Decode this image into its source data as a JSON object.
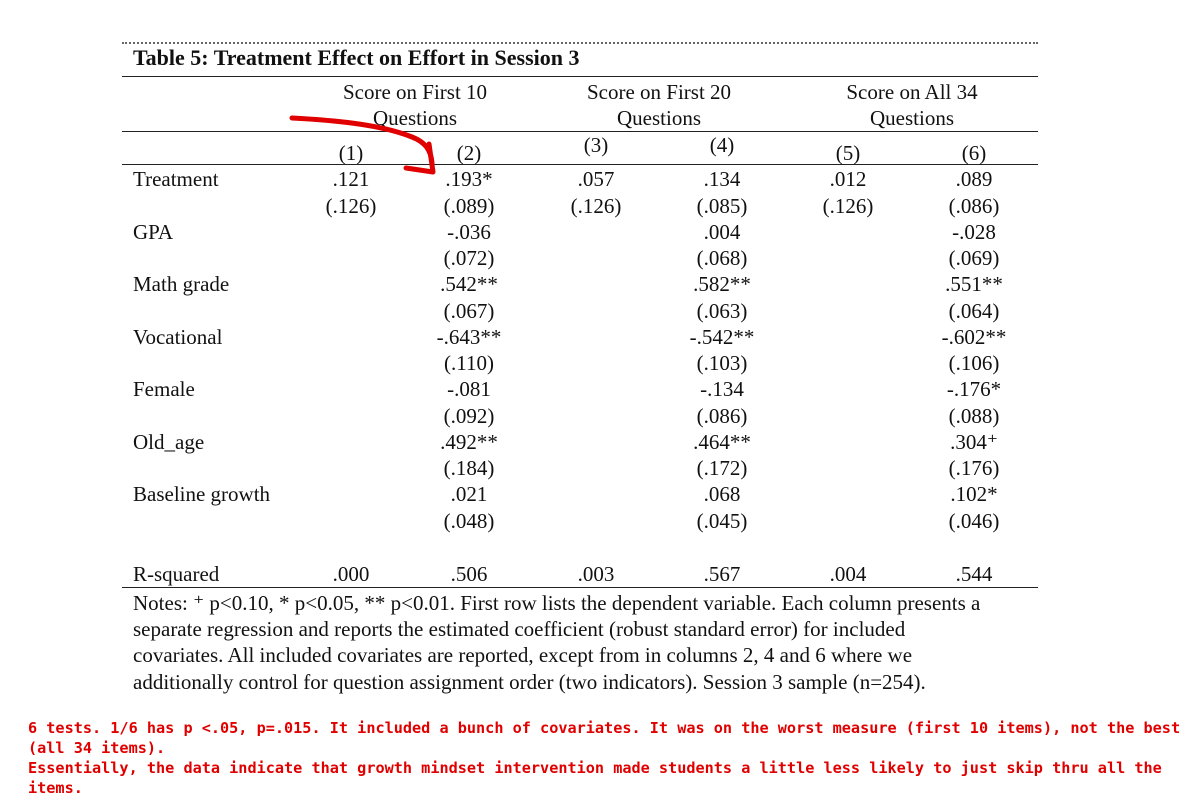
{
  "table": {
    "title": "Table 5: Treatment Effect on Effort in Session 3",
    "groups": [
      {
        "line1": "Score on First 10",
        "line2": "Questions"
      },
      {
        "line1": "Score on First 20",
        "line2": "Questions"
      },
      {
        "line1": "Score on All 34",
        "line2": "Questions"
      }
    ],
    "columns": [
      "(1)",
      "(2)",
      "(3)",
      "(4)",
      "(5)",
      "(6)"
    ],
    "rows": [
      {
        "label": "Treatment",
        "coef": [
          ".121",
          ".193*",
          ".057",
          ".134",
          ".012",
          ".089"
        ],
        "se": [
          "(.126)",
          "(.089)",
          "(.126)",
          "(.085)",
          "(.126)",
          "(.086)"
        ]
      },
      {
        "label": "GPA",
        "coef": [
          "",
          "-.036",
          "",
          ".004",
          "",
          "-.028"
        ],
        "se": [
          "",
          "(.072)",
          "",
          "(.068)",
          "",
          "(.069)"
        ]
      },
      {
        "label": "Math grade",
        "coef": [
          "",
          ".542**",
          "",
          ".582**",
          "",
          ".551**"
        ],
        "se": [
          "",
          "(.067)",
          "",
          "(.063)",
          "",
          "(.064)"
        ]
      },
      {
        "label": "Vocational",
        "coef": [
          "",
          "-.643**",
          "",
          "-.542**",
          "",
          "-.602**"
        ],
        "se": [
          "",
          "(.110)",
          "",
          "(.103)",
          "",
          "(.106)"
        ]
      },
      {
        "label": "Female",
        "coef": [
          "",
          "-.081",
          "",
          "-.134",
          "",
          "-.176*"
        ],
        "se": [
          "",
          "(.092)",
          "",
          "(.086)",
          "",
          "(.088)"
        ]
      },
      {
        "label": "Old_age",
        "coef": [
          "",
          ".492**",
          "",
          ".464**",
          "",
          ".304⁺"
        ],
        "se": [
          "",
          "(.184)",
          "",
          "(.172)",
          "",
          "(.176)"
        ]
      },
      {
        "label": "Baseline growth",
        "coef": [
          "",
          ".021",
          "",
          ".068",
          "",
          ".102*"
        ],
        "se": [
          "",
          "(.048)",
          "",
          "(.045)",
          "",
          "(.046)"
        ]
      }
    ],
    "rsquared": {
      "label": "R-squared",
      "values": [
        ".000",
        ".506",
        ".003",
        ".567",
        ".004",
        ".544"
      ]
    },
    "notes": "Notes: ⁺ p<0.10, * p<0.05, ** p<0.01. First row lists the dependent variable. Each column presents a separate regression and reports the estimated coefficient (robust standard error) for included covariates. All included covariates are reported, except from in columns 2, 4 and 6 where we additionally control for question assignment order (two indicators). Session 3 sample (n=254)."
  },
  "annotation": {
    "comment_line1": "6 tests. 1/6 has p <.05, p=.015. It included a bunch of covariates. It was on the worst measure (first 10 items), not the best (all 34 items).",
    "comment_line2": "Essentially, the data indicate that growth mindset intervention made students a little less likely to just skip thru all the items.",
    "arrow_color": "#e00000"
  }
}
